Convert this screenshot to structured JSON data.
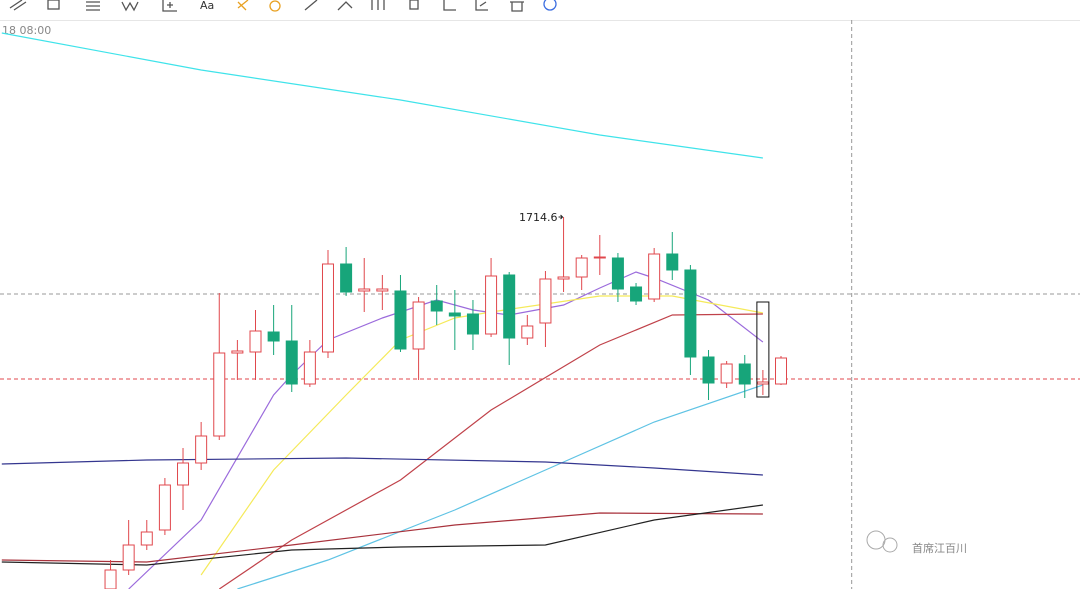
{
  "toolbar": {
    "text_tool": "Aa"
  },
  "watermark": "首席江百川",
  "chart_data": {
    "type": "candlestick",
    "time_label": "18 08:00",
    "xlim": [
      -6.1,
      53.5
    ],
    "ylim": [
      1528.6,
      1813.1
    ],
    "up_color": "#e0474c",
    "down_color": "#17a57a",
    "open": [
      1528.6,
      1538.1,
      1550.6,
      1558.1,
      1580.6,
      1591.6,
      1605.1,
      1646.6,
      1647.1,
      1657.1,
      1652.6,
      1631.1,
      1647.1,
      1691.1,
      1677.6,
      1677.6,
      1677.6,
      1648.6,
      1672.6,
      1666.6,
      1666.1,
      1656.1,
      1685.6,
      1654.1,
      1661.6,
      1683.6,
      1684.6,
      1694.1,
      1694.1,
      1679.6,
      1673.6,
      1696.1,
      1688.1,
      1644.6,
      1631.6,
      1641.1,
      1631.1,
      1631.1
    ],
    "high": [
      1543.1,
      1563.1,
      1563.1,
      1584.1,
      1599.1,
      1612.1,
      1676.6,
      1653.1,
      1668.1,
      1670.6,
      1670.6,
      1653.1,
      1698.1,
      1699.6,
      1694.1,
      1685.6,
      1685.6,
      1674.6,
      1680.6,
      1678.1,
      1673.1,
      1694.1,
      1687.1,
      1665.6,
      1687.6,
      1714.6,
      1695.6,
      1705.6,
      1696.6,
      1681.6,
      1699.1,
      1707.1,
      1690.6,
      1648.1,
      1642.6,
      1645.6,
      1638.1,
      1645.1
    ],
    "low": [
      1528.6,
      1535.6,
      1548.1,
      1555.6,
      1568.1,
      1588.1,
      1603.1,
      1633.1,
      1633.1,
      1645.6,
      1627.1,
      1629.6,
      1644.1,
      1675.1,
      1667.1,
      1668.1,
      1647.1,
      1633.1,
      1660.6,
      1648.1,
      1648.1,
      1654.6,
      1640.6,
      1650.6,
      1649.6,
      1677.1,
      1678.1,
      1685.6,
      1672.1,
      1670.6,
      1672.1,
      1683.1,
      1635.6,
      1623.1,
      1629.1,
      1624.1,
      1625.6,
      1630.6
    ],
    "close": [
      1538.1,
      1550.6,
      1557.1,
      1580.6,
      1591.6,
      1605.1,
      1646.6,
      1647.6,
      1657.6,
      1652.6,
      1631.1,
      1647.1,
      1691.1,
      1677.1,
      1678.6,
      1678.6,
      1648.6,
      1672.1,
      1667.6,
      1665.1,
      1656.1,
      1685.1,
      1654.1,
      1660.1,
      1683.6,
      1684.6,
      1694.1,
      1694.6,
      1678.6,
      1672.6,
      1696.1,
      1688.1,
      1644.6,
      1631.6,
      1641.1,
      1631.1,
      1632.1,
      1644.1
    ],
    "lines": [
      {
        "color": "#3fe3ea",
        "x": [
          -6,
          5,
          16,
          27,
          36
        ],
        "values": [
          1806.6,
          1788.1,
          1773.1,
          1755.6,
          1744.1
        ]
      },
      {
        "color": "#9b6bdc",
        "x": [
          1,
          5,
          9,
          10,
          12,
          15,
          18,
          20,
          22,
          25,
          27,
          29,
          30,
          33,
          36
        ],
        "values": [
          1528.6,
          1563.1,
          1625.6,
          1635.6,
          1653.1,
          1664.1,
          1673.1,
          1668.1,
          1665.6,
          1670.6,
          1679.1,
          1687.1,
          1684.1,
          1673.1,
          1652.1
        ]
      },
      {
        "color": "#f5ea5a",
        "x": [
          5,
          9,
          13,
          16,
          19,
          21,
          27,
          31,
          36
        ],
        "values": [
          1535.6,
          1588.1,
          1625.6,
          1653.1,
          1664.1,
          1667.1,
          1675.1,
          1675.1,
          1666.6
        ]
      },
      {
        "color": "#c0424a",
        "x": [
          6,
          10,
          16,
          21,
          27,
          31,
          36
        ],
        "values": [
          1528.6,
          1553.1,
          1583.1,
          1618.1,
          1650.6,
          1665.6,
          1666.1
        ]
      },
      {
        "color": "#5fc3e4",
        "x": [
          7,
          12,
          19,
          25,
          30,
          36
        ],
        "values": [
          1528.6,
          1543.1,
          1568.1,
          1592.1,
          1612.1,
          1630.6
        ]
      },
      {
        "color": "#34368f",
        "x": [
          -6,
          2,
          13,
          24,
          30,
          36
        ],
        "values": [
          1591.1,
          1593.1,
          1594.1,
          1592.1,
          1589.1,
          1585.6
        ]
      },
      {
        "color": "#a8323c",
        "x": [
          -6,
          2,
          10,
          19,
          27,
          36
        ],
        "values": [
          1543.1,
          1542.1,
          1550.6,
          1560.6,
          1566.6,
          1566.1
        ]
      },
      {
        "color": "#222222",
        "x": [
          -6,
          2,
          10,
          16,
          24,
          30,
          36
        ],
        "values": [
          1542.1,
          1540.6,
          1548.1,
          1549.6,
          1550.6,
          1563.1,
          1570.6
        ]
      }
    ],
    "max_index": 25,
    "selected": 36,
    "crosshair_x": 40.9,
    "crosshair_y": 1676.1,
    "last_price": 1633.6
  }
}
